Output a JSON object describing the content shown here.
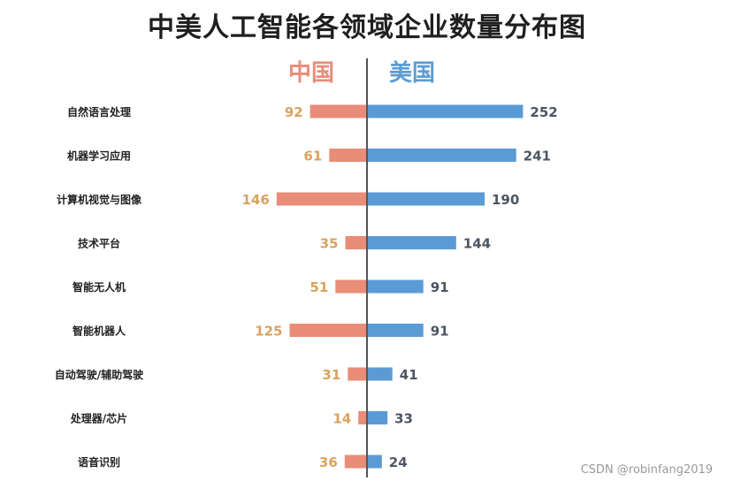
{
  "colors": {
    "china": "#e98c78",
    "china_label": "#d9a25e",
    "us": "#5b9bd5",
    "us_label": "#4b5563",
    "axis": "#555555"
  },
  "chart_data": {
    "type": "bar",
    "orientation": "horizontal-diverging",
    "title": "中美人工智能各领域企业数量分布图",
    "categories": [
      "自然语言处理",
      "机器学习应用",
      "计算机视觉与图像",
      "技术平台",
      "智能无人机",
      "智能机器人",
      "自动驾驶/辅助驾驶",
      "处理器/芯片",
      "语音识别"
    ],
    "series": [
      {
        "name": "中国",
        "values": [
          92,
          61,
          146,
          35,
          51,
          125,
          31,
          14,
          36
        ]
      },
      {
        "name": "美国",
        "values": [
          252,
          241,
          190,
          144,
          91,
          91,
          41,
          33,
          24
        ]
      }
    ],
    "grid": false,
    "legend": "top-center"
  },
  "watermark": "CSDN @robinfang2019"
}
